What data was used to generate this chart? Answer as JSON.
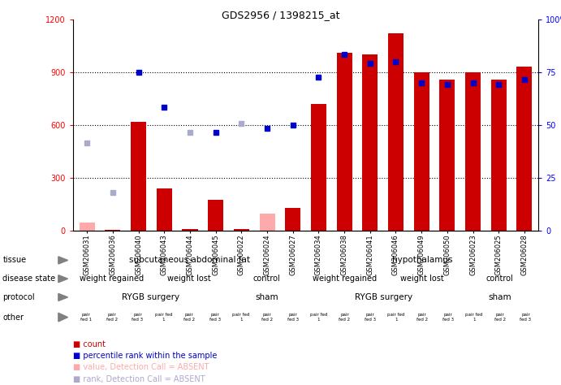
{
  "title": "GDS2956 / 1398215_at",
  "samples": [
    "GSM206031",
    "GSM206036",
    "GSM206040",
    "GSM206043",
    "GSM206044",
    "GSM206045",
    "GSM206022",
    "GSM206024",
    "GSM206027",
    "GSM206034",
    "GSM206038",
    "GSM206041",
    "GSM206046",
    "GSM206049",
    "GSM206050",
    "GSM206023",
    "GSM206025",
    "GSM206028"
  ],
  "count_values": [
    50,
    5,
    620,
    240,
    10,
    175,
    10,
    100,
    130,
    720,
    1010,
    1000,
    1120,
    900,
    860,
    900,
    860,
    930
  ],
  "count_absent": [
    true,
    false,
    false,
    false,
    false,
    false,
    false,
    true,
    false,
    false,
    false,
    false,
    false,
    false,
    false,
    false,
    false,
    false
  ],
  "percentile_values": [
    500,
    220,
    900,
    700,
    560,
    560,
    610,
    580,
    600,
    870,
    1000,
    950,
    960,
    840,
    830,
    840,
    830,
    860
  ],
  "percentile_absent": [
    true,
    true,
    false,
    false,
    true,
    false,
    true,
    false,
    false,
    false,
    false,
    false,
    false,
    false,
    false,
    false,
    false,
    false
  ],
  "ylim_left": [
    0,
    1200
  ],
  "ylim_right": [
    0,
    100
  ],
  "yticks_left": [
    0,
    300,
    600,
    900,
    1200
  ],
  "yticks_right": [
    0,
    25,
    50,
    75,
    100
  ],
  "tissue_groups": [
    {
      "label": "subcutaneous abdominal fat",
      "start": 0,
      "end": 9,
      "color": "#90EE90"
    },
    {
      "label": "hypothalamus",
      "start": 9,
      "end": 18,
      "color": "#66CC66"
    }
  ],
  "disease_state_groups": [
    {
      "label": "weight regained",
      "start": 0,
      "end": 3,
      "color": "#CCDDFF"
    },
    {
      "label": "weight lost",
      "start": 3,
      "end": 6,
      "color": "#AABBEE"
    },
    {
      "label": "control",
      "start": 6,
      "end": 9,
      "color": "#99AADD"
    },
    {
      "label": "weight regained",
      "start": 9,
      "end": 12,
      "color": "#CCDDFF"
    },
    {
      "label": "weight lost",
      "start": 12,
      "end": 15,
      "color": "#AABBEE"
    },
    {
      "label": "control",
      "start": 15,
      "end": 18,
      "color": "#99AADD"
    }
  ],
  "protocol_groups": [
    {
      "label": "RYGB surgery",
      "start": 0,
      "end": 6,
      "color": "#EE55EE"
    },
    {
      "label": "sham",
      "start": 6,
      "end": 9,
      "color": "#BB33BB"
    },
    {
      "label": "RYGB surgery",
      "start": 9,
      "end": 15,
      "color": "#EE55EE"
    },
    {
      "label": "sham",
      "start": 15,
      "end": 18,
      "color": "#BB33BB"
    }
  ],
  "other_labels": [
    "pair\nfed 1",
    "pair\nfed 2",
    "pair\nfed 3",
    "pair fed\n1",
    "pair\nfed 2",
    "pair\nfed 3",
    "pair fed\n1",
    "pair\nfed 2",
    "pair\nfed 3",
    "pair fed\n1",
    "pair\nfed 2",
    "pair\nfed 3",
    "pair fed\n1",
    "pair\nfed 2",
    "pair\nfed 3",
    "pair fed\n1",
    "pair\nfed 2",
    "pair\nfed 3"
  ],
  "other_color_even": "#DEB887",
  "other_color_odd": "#C8A060",
  "bar_color_present": "#CC0000",
  "bar_color_absent": "#FFAAAA",
  "dot_color_present": "#0000CC",
  "dot_color_absent": "#AAAACC",
  "legend_items": [
    {
      "color": "#CC0000",
      "label": "count"
    },
    {
      "color": "#0000CC",
      "label": "percentile rank within the sample"
    },
    {
      "color": "#FFAAAA",
      "label": "value, Detection Call = ABSENT"
    },
    {
      "color": "#AAAACC",
      "label": "rank, Detection Call = ABSENT"
    }
  ],
  "row_labels": [
    "tissue",
    "disease state",
    "protocol",
    "other"
  ],
  "xtick_bg": "#D3D3D3"
}
